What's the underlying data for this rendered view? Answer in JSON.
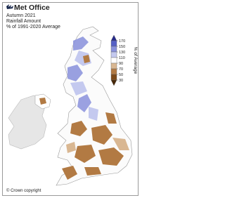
{
  "header": {
    "logo": "Met Office",
    "title": "Autumn 2021",
    "subtitle": "Rainfall Amount",
    "description": "% of 1991-2020 Average"
  },
  "legend": {
    "title": "% of Average",
    "ticks": [
      170,
      150,
      130,
      110,
      90,
      70,
      50,
      30
    ],
    "colors": [
      "#262a8a",
      "#5560c6",
      "#8991dc",
      "#c4c9ef",
      "#ffffff",
      "#d9b792",
      "#b27a43",
      "#7d4918",
      "#472708"
    ]
  },
  "footer": {
    "copyright": "© Crown copyright"
  }
}
